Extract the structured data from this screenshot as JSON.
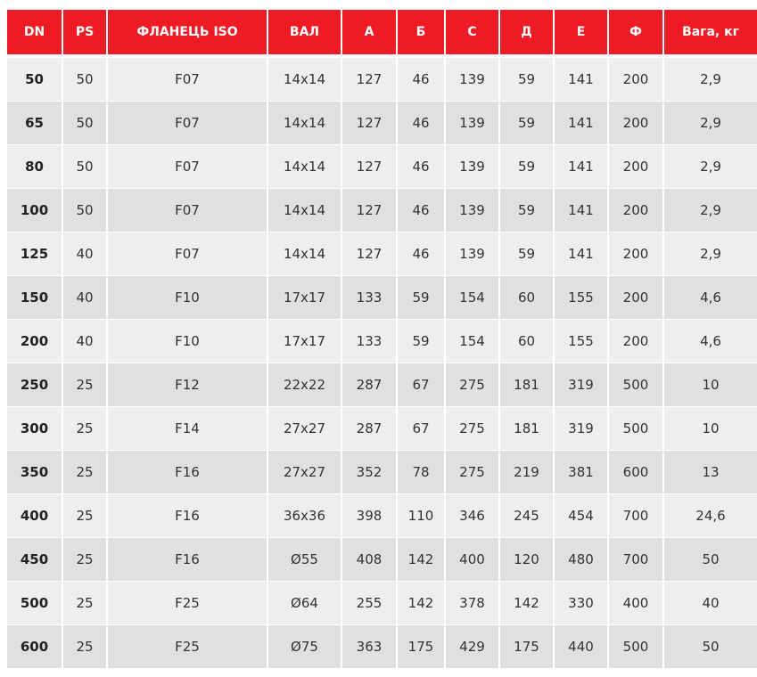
{
  "colors": {
    "header_bg": "#ed1c24",
    "row_odd": "#eeeeee",
    "row_even": "#e0e0e0"
  },
  "headers": [
    "DN",
    "PS",
    "ФЛАНЕЦЬ ISO",
    "ВАЛ",
    "А",
    "Б",
    "С",
    "Д",
    "Е",
    "Ф",
    "Вага, кг"
  ],
  "rows": [
    [
      "50",
      "50",
      "F07",
      "14x14",
      "127",
      "46",
      "139",
      "59",
      "141",
      "200",
      "2,9"
    ],
    [
      "65",
      "50",
      "F07",
      "14x14",
      "127",
      "46",
      "139",
      "59",
      "141",
      "200",
      "2,9"
    ],
    [
      "80",
      "50",
      "F07",
      "14x14",
      "127",
      "46",
      "139",
      "59",
      "141",
      "200",
      "2,9"
    ],
    [
      "100",
      "50",
      "F07",
      "14x14",
      "127",
      "46",
      "139",
      "59",
      "141",
      "200",
      "2,9"
    ],
    [
      "125",
      "40",
      "F07",
      "14x14",
      "127",
      "46",
      "139",
      "59",
      "141",
      "200",
      "2,9"
    ],
    [
      "150",
      "40",
      "F10",
      "17x17",
      "133",
      "59",
      "154",
      "60",
      "155",
      "200",
      "4,6"
    ],
    [
      "200",
      "40",
      "F10",
      "17x17",
      "133",
      "59",
      "154",
      "60",
      "155",
      "200",
      "4,6"
    ],
    [
      "250",
      "25",
      "F12",
      "22x22",
      "287",
      "67",
      "275",
      "181",
      "319",
      "500",
      "10"
    ],
    [
      "300",
      "25",
      "F14",
      "27x27",
      "287",
      "67",
      "275",
      "181",
      "319",
      "500",
      "10"
    ],
    [
      "350",
      "25",
      "F16",
      "27x27",
      "352",
      "78",
      "275",
      "219",
      "381",
      "600",
      "13"
    ],
    [
      "400",
      "25",
      "F16",
      "36x36",
      "398",
      "110",
      "346",
      "245",
      "454",
      "700",
      "24,6"
    ],
    [
      "450",
      "25",
      "F16",
      "Ø55",
      "408",
      "142",
      "400",
      "120",
      "480",
      "700",
      "50"
    ],
    [
      "500",
      "25",
      "F25",
      "Ø64",
      "255",
      "142",
      "378",
      "142",
      "330",
      "400",
      "40"
    ],
    [
      "600",
      "25",
      "F25",
      "Ø75",
      "363",
      "175",
      "429",
      "175",
      "440",
      "500",
      "50"
    ]
  ]
}
